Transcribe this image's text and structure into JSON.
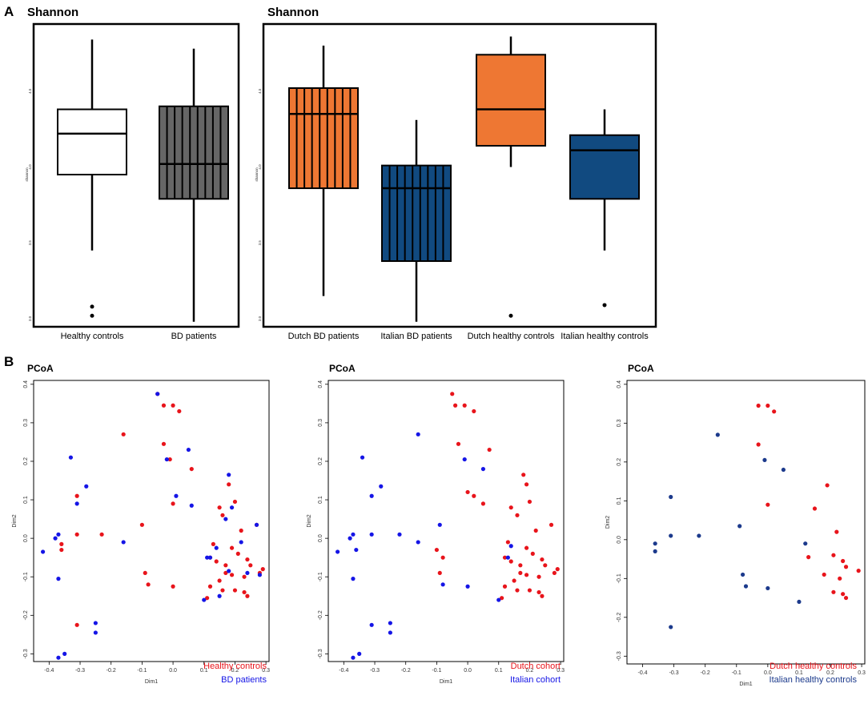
{
  "panel_labels": {
    "a": "A",
    "b": "B"
  },
  "chart_data": [
    {
      "type": "boxplot",
      "title": "Shannon",
      "ylabel": "shannon",
      "ylim": [
        3.0,
        4.9
      ],
      "yticks": [
        3.0,
        3.5,
        4.0,
        4.5
      ],
      "ytick_labels": [
        "3.0",
        "3.5",
        "4.0",
        "4.5"
      ],
      "categories": [
        "Healthy controls",
        "BD patients"
      ],
      "boxes": [
        {
          "min": 3.45,
          "q1": 3.95,
          "median": 4.22,
          "q3": 4.38,
          "max": 4.84,
          "fill": "#ffffff",
          "striped": false,
          "outliers": [
            3.08,
            3.02
          ]
        },
        {
          "min": 2.98,
          "q1": 3.79,
          "median": 4.02,
          "q3": 4.4,
          "max": 4.78,
          "fill": "#666666",
          "striped": true,
          "outliers": []
        }
      ]
    },
    {
      "type": "boxplot",
      "title": "Shannon",
      "ylabel": "shannon",
      "ylim": [
        3.0,
        4.9
      ],
      "yticks": [
        3.0,
        3.5,
        4.0,
        4.5
      ],
      "ytick_labels": [
        "3.0",
        "3.5",
        "4.0",
        "4.5"
      ],
      "categories": [
        "Dutch BD patients",
        "Italian BD patients",
        "Dutch healthy controls",
        "Italian healthy controls"
      ],
      "boxes": [
        {
          "min": 3.15,
          "q1": 3.86,
          "median": 4.35,
          "q3": 4.52,
          "max": 4.8,
          "fill": "#ee7733",
          "striped": true,
          "outliers": []
        },
        {
          "min": 2.98,
          "q1": 3.38,
          "median": 3.86,
          "q3": 4.01,
          "max": 4.31,
          "fill": "#114a80",
          "striped": true,
          "outliers": []
        },
        {
          "min": 4.0,
          "q1": 4.14,
          "median": 4.38,
          "q3": 4.74,
          "max": 4.86,
          "fill": "#ee7733",
          "striped": false,
          "outliers": [
            3.02
          ]
        },
        {
          "min": 3.45,
          "q1": 3.79,
          "median": 4.11,
          "q3": 4.21,
          "max": 4.38,
          "fill": "#114a80",
          "striped": false,
          "outliers": [
            3.09
          ]
        }
      ]
    },
    {
      "type": "scatter",
      "title": "PCoA",
      "xlabel": "Dim1",
      "ylabel": "Dim2",
      "xlim": [
        -0.45,
        0.31
      ],
      "ylim": [
        -0.32,
        0.41
      ],
      "xticks": [
        -0.4,
        -0.3,
        -0.2,
        -0.1,
        0.0,
        0.1,
        0.2,
        0.3
      ],
      "xtick_labels": [
        "-0.4",
        "-0.3",
        "-0.2",
        "-0.1",
        "0.0",
        "0.1",
        "0.2",
        "0.3"
      ],
      "yticks": [
        -0.3,
        -0.2,
        -0.1,
        0.0,
        0.1,
        0.2,
        0.3,
        0.4
      ],
      "ytick_labels": [
        "-0.3",
        "-0.2",
        "-0.1",
        "0.0",
        "0.1",
        "0.2",
        "0.3",
        "0.4"
      ],
      "series": [
        {
          "name": "Healthy controls",
          "color": "#e8141b",
          "points": [
            [
              -0.05,
              0.375
            ],
            [
              -0.03,
              0.345
            ],
            [
              0.0,
              0.345
            ],
            [
              0.02,
              0.33
            ],
            [
              -0.16,
              0.27
            ],
            [
              -0.03,
              0.245
            ],
            [
              -0.01,
              0.205
            ],
            [
              0.06,
              0.18
            ],
            [
              0.0,
              0.09
            ],
            [
              -0.31,
              0.11
            ],
            [
              -0.1,
              0.035
            ],
            [
              -0.31,
              0.01
            ],
            [
              -0.23,
              0.01
            ],
            [
              -0.36,
              -0.015
            ],
            [
              -0.36,
              -0.03
            ],
            [
              -0.09,
              -0.09
            ],
            [
              -0.08,
              -0.12
            ],
            [
              0.0,
              -0.125
            ],
            [
              -0.31,
              -0.225
            ],
            [
              0.15,
              0.08
            ],
            [
              0.18,
              0.14
            ],
            [
              0.2,
              0.095
            ],
            [
              0.16,
              0.06
            ],
            [
              0.22,
              0.02
            ],
            [
              0.27,
              0.035
            ],
            [
              0.13,
              -0.015
            ],
            [
              0.12,
              -0.05
            ],
            [
              0.19,
              -0.025
            ],
            [
              0.14,
              -0.06
            ],
            [
              0.17,
              -0.07
            ],
            [
              0.21,
              -0.04
            ],
            [
              0.24,
              -0.055
            ],
            [
              0.25,
              -0.07
            ],
            [
              0.17,
              -0.09
            ],
            [
              0.23,
              -0.1
            ],
            [
              0.28,
              -0.09
            ],
            [
              0.29,
              -0.08
            ],
            [
              0.12,
              -0.125
            ],
            [
              0.15,
              -0.11
            ],
            [
              0.2,
              -0.135
            ],
            [
              0.23,
              -0.14
            ],
            [
              0.24,
              -0.15
            ],
            [
              0.16,
              -0.135
            ],
            [
              0.11,
              -0.155
            ],
            [
              0.19,
              -0.095
            ]
          ]
        },
        {
          "name": "BD patients",
          "color": "#1515e6",
          "points": [
            [
              -0.05,
              0.375
            ],
            [
              -0.33,
              0.21
            ],
            [
              -0.28,
              0.135
            ],
            [
              -0.31,
              0.09
            ],
            [
              -0.42,
              -0.035
            ],
            [
              -0.37,
              0.01
            ],
            [
              -0.38,
              0.0
            ],
            [
              -0.37,
              -0.105
            ],
            [
              -0.25,
              -0.22
            ],
            [
              -0.25,
              -0.245
            ],
            [
              -0.35,
              -0.3
            ],
            [
              -0.37,
              -0.31
            ],
            [
              -0.16,
              -0.01
            ],
            [
              0.01,
              0.11
            ],
            [
              0.05,
              0.23
            ],
            [
              -0.02,
              0.205
            ],
            [
              0.06,
              0.085
            ],
            [
              0.1,
              -0.16
            ],
            [
              0.12,
              -0.05
            ],
            [
              0.14,
              -0.025
            ],
            [
              0.18,
              0.165
            ],
            [
              0.19,
              0.08
            ],
            [
              0.17,
              0.05
            ],
            [
              0.22,
              -0.01
            ],
            [
              0.27,
              0.035
            ],
            [
              0.18,
              -0.085
            ],
            [
              0.24,
              -0.09
            ],
            [
              0.28,
              -0.095
            ],
            [
              0.11,
              -0.05
            ],
            [
              0.15,
              -0.15
            ]
          ]
        }
      ]
    },
    {
      "type": "scatter",
      "title": "PCoA",
      "xlabel": "Dim1",
      "ylabel": "Dim2",
      "xlim": [
        -0.45,
        0.31
      ],
      "ylim": [
        -0.32,
        0.41
      ],
      "xticks": [
        -0.4,
        -0.3,
        -0.2,
        -0.1,
        0.0,
        0.1,
        0.2,
        0.3
      ],
      "xtick_labels": [
        "-0.4",
        "-0.3",
        "-0.2",
        "-0.1",
        "0.0",
        "0.1",
        "0.2",
        "0.3"
      ],
      "yticks": [
        -0.3,
        -0.2,
        -0.1,
        0.0,
        0.1,
        0.2,
        0.3,
        0.4
      ],
      "ytick_labels": [
        "-0.3",
        "-0.2",
        "-0.1",
        "0.0",
        "0.1",
        "0.2",
        "0.3",
        "0.4"
      ],
      "series": [
        {
          "name": "Dutch cohort",
          "color": "#e8141b",
          "points": [
            [
              -0.05,
              0.375
            ],
            [
              -0.04,
              0.345
            ],
            [
              -0.01,
              0.345
            ],
            [
              0.02,
              0.33
            ],
            [
              -0.03,
              0.245
            ],
            [
              0.07,
              0.23
            ],
            [
              0.0,
              0.12
            ],
            [
              0.02,
              0.11
            ],
            [
              0.05,
              0.09
            ],
            [
              0.14,
              0.08
            ],
            [
              0.18,
              0.165
            ],
            [
              0.19,
              0.14
            ],
            [
              0.16,
              0.06
            ],
            [
              0.2,
              0.095
            ],
            [
              0.22,
              0.02
            ],
            [
              0.27,
              0.035
            ],
            [
              0.13,
              -0.01
            ],
            [
              0.12,
              -0.05
            ],
            [
              0.19,
              -0.025
            ],
            [
              0.14,
              -0.06
            ],
            [
              0.17,
              -0.07
            ],
            [
              0.21,
              -0.04
            ],
            [
              0.24,
              -0.055
            ],
            [
              0.25,
              -0.07
            ],
            [
              0.17,
              -0.09
            ],
            [
              0.23,
              -0.1
            ],
            [
              0.28,
              -0.09
            ],
            [
              0.29,
              -0.08
            ],
            [
              0.12,
              -0.125
            ],
            [
              0.15,
              -0.11
            ],
            [
              0.2,
              -0.135
            ],
            [
              0.23,
              -0.14
            ],
            [
              0.24,
              -0.15
            ],
            [
              0.16,
              -0.135
            ],
            [
              0.11,
              -0.155
            ],
            [
              -0.1,
              -0.03
            ],
            [
              -0.08,
              -0.05
            ],
            [
              -0.09,
              -0.09
            ],
            [
              0.19,
              -0.095
            ]
          ]
        },
        {
          "name": "Italian cohort",
          "color": "#1515e6",
          "points": [
            [
              -0.16,
              0.27
            ],
            [
              -0.34,
              0.21
            ],
            [
              -0.28,
              0.135
            ],
            [
              -0.31,
              0.11
            ],
            [
              -0.01,
              0.205
            ],
            [
              0.05,
              0.18
            ],
            [
              -0.09,
              0.035
            ],
            [
              -0.31,
              0.01
            ],
            [
              -0.22,
              0.01
            ],
            [
              -0.42,
              -0.035
            ],
            [
              -0.37,
              0.01
            ],
            [
              -0.38,
              0.0
            ],
            [
              -0.36,
              -0.03
            ],
            [
              -0.37,
              -0.105
            ],
            [
              -0.16,
              -0.01
            ],
            [
              -0.08,
              -0.12
            ],
            [
              0.0,
              -0.125
            ],
            [
              -0.31,
              -0.225
            ],
            [
              -0.25,
              -0.22
            ],
            [
              -0.25,
              -0.245
            ],
            [
              -0.35,
              -0.3
            ],
            [
              -0.37,
              -0.31
            ],
            [
              0.1,
              -0.16
            ],
            [
              0.13,
              -0.05
            ],
            [
              0.14,
              -0.02
            ]
          ]
        }
      ]
    },
    {
      "type": "scatter",
      "title": "PCoA",
      "xlabel": "Dim1",
      "ylabel": "Dim2",
      "xlim": [
        -0.45,
        0.31
      ],
      "ylim": [
        -0.32,
        0.41
      ],
      "xticks": [
        -0.4,
        -0.3,
        -0.2,
        -0.1,
        0.0,
        0.1,
        0.2,
        0.3
      ],
      "xtick_labels": [
        "-0.4",
        "-0.3",
        "-0.2",
        "-0.1",
        "0.0",
        "0.1",
        "0.2",
        "0.3"
      ],
      "yticks": [
        -0.3,
        -0.2,
        -0.1,
        0.0,
        0.1,
        0.2,
        0.3,
        0.4
      ],
      "ytick_labels": [
        "-0.3",
        "-0.2",
        "-0.1",
        "0.0",
        "0.1",
        "0.2",
        "0.3",
        "0.4"
      ],
      "series": [
        {
          "name": "Dutch healthy controls",
          "color": "#e8141b",
          "points": [
            [
              -0.03,
              0.345
            ],
            [
              0.0,
              0.345
            ],
            [
              0.02,
              0.33
            ],
            [
              -0.03,
              0.245
            ],
            [
              0.0,
              0.09
            ],
            [
              0.19,
              0.14
            ],
            [
              0.15,
              0.08
            ],
            [
              0.22,
              0.02
            ],
            [
              0.13,
              -0.045
            ],
            [
              0.21,
              -0.04
            ],
            [
              0.24,
              -0.055
            ],
            [
              0.25,
              -0.07
            ],
            [
              0.29,
              -0.08
            ],
            [
              0.23,
              -0.1
            ],
            [
              0.18,
              -0.09
            ],
            [
              0.21,
              -0.135
            ],
            [
              0.24,
              -0.14
            ],
            [
              0.25,
              -0.15
            ]
          ]
        },
        {
          "name": "Italian healthy controls",
          "color": "#1c3a8c",
          "points": [
            [
              -0.16,
              0.27
            ],
            [
              -0.31,
              0.11
            ],
            [
              -0.01,
              0.205
            ],
            [
              0.05,
              0.18
            ],
            [
              -0.09,
              0.035
            ],
            [
              -0.31,
              0.01
            ],
            [
              -0.22,
              0.01
            ],
            [
              -0.36,
              -0.01
            ],
            [
              -0.36,
              -0.03
            ],
            [
              -0.08,
              -0.09
            ],
            [
              -0.07,
              -0.12
            ],
            [
              0.0,
              -0.125
            ],
            [
              -0.31,
              -0.225
            ],
            [
              0.1,
              -0.16
            ],
            [
              0.12,
              -0.01
            ]
          ]
        }
      ]
    }
  ]
}
